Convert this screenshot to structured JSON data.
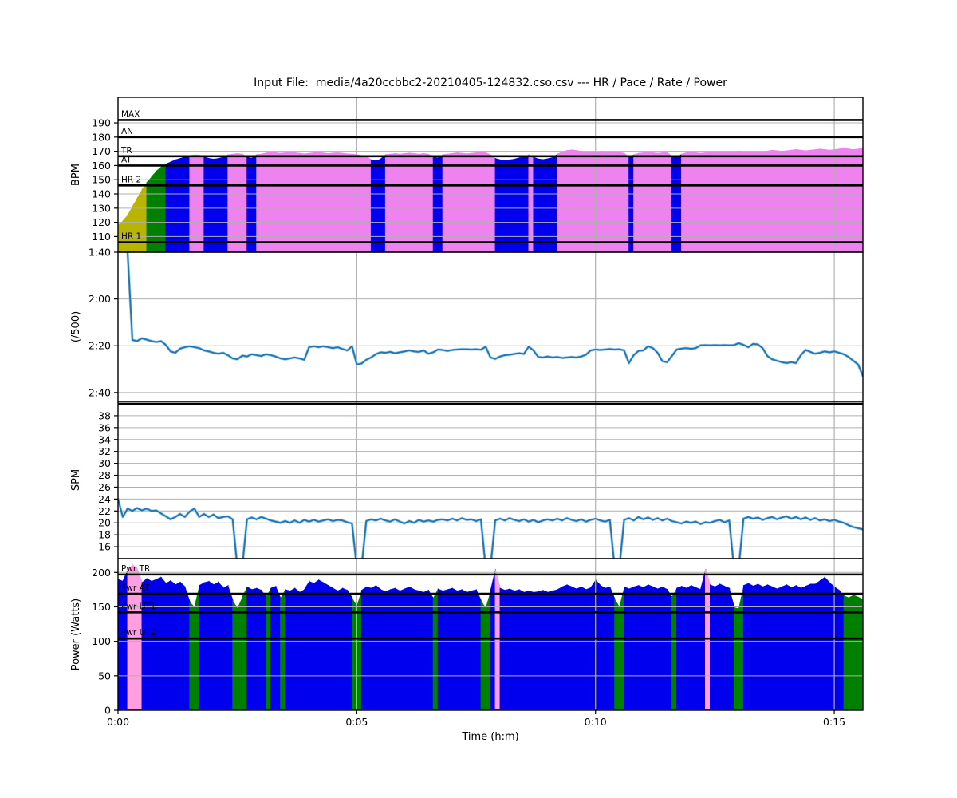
{
  "title": "Input File:  media/4a20ccbbc2-20210405-124832.cso.csv --- HR / Pace / Rate / Power",
  "chart_data": {
    "type": "area",
    "title": "Input File:  media/4a20ccbbc2-20210405-124832.cso.csv --- HR / Pace / Rate / Power",
    "xlabel": "Time (h:m)",
    "time_step_s": 6,
    "duration_s": 936,
    "grid_color": "#b0b0b0",
    "xticks": [
      {
        "s": 0,
        "label": "0:00"
      },
      {
        "s": 300,
        "label": "0:05"
      },
      {
        "s": 600,
        "label": "0:10"
      },
      {
        "s": 900,
        "label": "0:15"
      }
    ],
    "panels": [
      {
        "id": "hr",
        "type": "area",
        "ylabel": "BPM",
        "ylim": [
          99,
          208
        ],
        "yticks": [
          {
            "v": 190,
            "label": "190"
          },
          {
            "v": 180,
            "label": "180"
          },
          {
            "v": 170,
            "label": "170"
          },
          {
            "v": 160,
            "label": "160"
          },
          {
            "v": 150,
            "label": "150"
          },
          {
            "v": 140,
            "label": "140"
          },
          {
            "v": 130,
            "label": "130"
          },
          {
            "v": 120,
            "label": "120"
          },
          {
            "v": 110,
            "label": "110"
          }
        ],
        "thresholds": [
          {
            "label": "MAX",
            "v": 192
          },
          {
            "label": "AN",
            "v": 180
          },
          {
            "label": "TR",
            "v": 166.5
          },
          {
            "label": "AT",
            "v": 160
          },
          {
            "label": "HR 2",
            "v": 146
          },
          {
            "label": "HR 1",
            "v": 106
          }
        ],
        "zone_limits": [
          146,
          160,
          166.3
        ],
        "zone_colors": [
          "#b9b400",
          "#008000",
          "#0000ee",
          "#ee82ee"
        ],
        "values": [
          118,
          121,
          125,
          131,
          137,
          143,
          148,
          152,
          156,
          159,
          161,
          162.5,
          164,
          165,
          166,
          167,
          167.5,
          167.2,
          166,
          165,
          164.5,
          165,
          165.8,
          167.5,
          168,
          168.4,
          168,
          165.8,
          165.2,
          167.6,
          168,
          168.8,
          169.2,
          169,
          168.6,
          169,
          169.4,
          169,
          168.6,
          168.2,
          168.6,
          169,
          169.2,
          168.8,
          168.4,
          168.8,
          169,
          168.6,
          168.2,
          168,
          167.6,
          167,
          166.4,
          164,
          163.2,
          164.6,
          167.6,
          168,
          168.4,
          168,
          168.4,
          168.8,
          168.4,
          168,
          168.4,
          168,
          165.8,
          165.4,
          167.6,
          168,
          168.5,
          169,
          168.6,
          168.2,
          168.6,
          169,
          169.4,
          169,
          167.4,
          165,
          164,
          163.6,
          164,
          164.5,
          165.4,
          166,
          167.4,
          165.8,
          164.6,
          164.2,
          164.8,
          165.6,
          168,
          169.6,
          170.6,
          171,
          170.6,
          170,
          169.6,
          169.2,
          169.6,
          170,
          169.6,
          169.2,
          169.6,
          169.2,
          168.6,
          165.6,
          167.6,
          168.6,
          169,
          169.4,
          169,
          168.6,
          169,
          169.4,
          166,
          165.6,
          168,
          169,
          169.4,
          169,
          168.6,
          169,
          169.4,
          169.8,
          169.4,
          169,
          169.4,
          169.8,
          170.2,
          169.8,
          169.4,
          169,
          169.4,
          169.8,
          170.2,
          170.8,
          170.4,
          170,
          170.4,
          170.8,
          171.2,
          170.8,
          170.4,
          170.8,
          171.2,
          171.6,
          171.2,
          170.8,
          171.2,
          171.6,
          172,
          171.6,
          171.2,
          171.6,
          172
        ]
      },
      {
        "id": "pace",
        "type": "line",
        "ylabel": "(/500)",
        "ylim": [
          100,
          163.8
        ],
        "invert": true,
        "line_color": "#1f77b4",
        "halo_color": "#9dc7e6",
        "yticks": [
          {
            "v": 100,
            "label": "1:40"
          },
          {
            "v": 120,
            "label": "2:00"
          },
          {
            "v": 140,
            "label": "2:20"
          },
          {
            "v": 160,
            "label": "2:40"
          }
        ],
        "thresholds": [],
        "values": [
          null,
          null,
          100,
          137.5,
          138,
          136.8,
          137.4,
          138,
          138.4,
          138,
          139.6,
          142.4,
          143,
          141.2,
          140.6,
          140.2,
          140.6,
          141,
          142,
          142.4,
          143,
          143.4,
          143,
          144,
          145.4,
          145.8,
          144.2,
          144.6,
          143.6,
          144,
          144.4,
          143.6,
          144,
          144.6,
          145.4,
          145.8,
          145.4,
          145,
          145.4,
          146,
          140.6,
          140.2,
          140.6,
          140.2,
          140.6,
          141,
          140.6,
          141.4,
          142,
          140.2,
          148,
          147.6,
          146,
          145,
          143.6,
          142.8,
          143,
          142.6,
          143.2,
          142.8,
          142.4,
          142,
          142.4,
          142.6,
          142,
          143.4,
          142.8,
          141.6,
          141.8,
          142.2,
          141.8,
          141.6,
          141.5,
          141.5,
          141.6,
          141.5,
          141.7,
          140.4,
          145,
          145.6,
          144.6,
          144,
          143.8,
          143.5,
          143.2,
          143.5,
          140.4,
          142,
          144.8,
          145,
          144.6,
          145,
          144.8,
          145.2,
          145,
          144.8,
          145,
          144.6,
          143.8,
          142,
          141.6,
          141.8,
          141.6,
          141.4,
          141.6,
          141.5,
          142,
          147.4,
          144,
          142.2,
          142,
          140.2,
          141,
          143,
          146.6,
          147,
          144.4,
          141.6,
          141.2,
          141,
          141.3,
          141,
          139.8,
          139.7,
          139.8,
          139.7,
          139.8,
          139.7,
          139.8,
          139.7,
          138.9,
          139.6,
          140.6,
          139.2,
          139.4,
          141,
          144.4,
          145.8,
          146.4,
          147,
          147.4,
          147,
          147.4,
          144,
          141.8,
          142.6,
          143.4,
          143,
          142.4,
          142.8,
          142.4,
          143,
          143.6,
          144.8,
          146.4,
          148,
          153
        ]
      },
      {
        "id": "spm",
        "type": "line",
        "ylabel": "SPM",
        "ylim": [
          14,
          40.4
        ],
        "line_color": "#1f77b4",
        "halo_color": "#9dc7e6",
        "yticks": [
          {
            "v": 38,
            "label": "38"
          },
          {
            "v": 36,
            "label": "36"
          },
          {
            "v": 34,
            "label": "34"
          },
          {
            "v": 32,
            "label": "32"
          },
          {
            "v": 30,
            "label": "30"
          },
          {
            "v": 28,
            "label": "28"
          },
          {
            "v": 26,
            "label": "26"
          },
          {
            "v": 24,
            "label": "24"
          },
          {
            "v": 22,
            "label": "22"
          },
          {
            "v": 20,
            "label": "20"
          },
          {
            "v": 18,
            "label": "18"
          },
          {
            "v": 16,
            "label": "16"
          }
        ],
        "thresholds": [
          {
            "label": "",
            "v": 40
          }
        ],
        "values": [
          24,
          21,
          22.4,
          22,
          22.5,
          22.1,
          22.4,
          22,
          22.1,
          21.6,
          21.1,
          20.6,
          21,
          21.5,
          21,
          21.9,
          22.4,
          21,
          21.5,
          21,
          21.4,
          20.8,
          21,
          21.1,
          20.6,
          12.5,
          12.5,
          20.6,
          20.9,
          20.6,
          21,
          20.7,
          20.4,
          20.2,
          20,
          20.3,
          20,
          20.4,
          20,
          20.5,
          20.2,
          20.5,
          20.2,
          20.4,
          20.6,
          20.3,
          20.5,
          20.4,
          20.1,
          19.9,
          12.5,
          12.5,
          20.3,
          20.6,
          20.4,
          20.7,
          20.4,
          20.2,
          20.6,
          20.2,
          19.9,
          20.3,
          20,
          20.5,
          20.2,
          20.4,
          20.2,
          20.5,
          20.6,
          20.4,
          20.7,
          20.4,
          20.8,
          20.5,
          20.6,
          20.3,
          20.6,
          12.5,
          12.5,
          20.4,
          20.7,
          20.4,
          20.8,
          20.5,
          20.3,
          20.6,
          20.2,
          20.5,
          20.1,
          20.4,
          20.6,
          20.4,
          20.7,
          20.4,
          20.8,
          20.5,
          20.3,
          20.6,
          20.2,
          20.5,
          20.7,
          20.4,
          20.2,
          20.5,
          12.5,
          12.5,
          20.5,
          20.8,
          20.4,
          21,
          20.6,
          20.9,
          20.5,
          20.8,
          20.4,
          20.7,
          20.3,
          20.1,
          19.9,
          20.2,
          20,
          20.2,
          19.8,
          20.1,
          20,
          20.3,
          20.5,
          20.1,
          20.4,
          12.5,
          12.5,
          20.7,
          21,
          20.7,
          20.9,
          20.5,
          20.8,
          21,
          20.6,
          20.9,
          21.1,
          20.7,
          21,
          20.6,
          20.9,
          20.5,
          20.8,
          20.4,
          20.6,
          20.3,
          20.5,
          20.2,
          20,
          19.6,
          19.3,
          19.1,
          18.9
        ]
      },
      {
        "id": "power",
        "type": "area",
        "ylabel": "Power (Watts)",
        "ylim": [
          0,
          220
        ],
        "yticks": [
          {
            "v": 200,
            "label": "200"
          },
          {
            "v": 150,
            "label": "150"
          },
          {
            "v": 100,
            "label": "100"
          },
          {
            "v": 50,
            "label": "50"
          },
          {
            "v": 0,
            "label": "0"
          }
        ],
        "thresholds": [
          {
            "label": "Pwr TR",
            "v": 197
          },
          {
            "label": "Pwr AT",
            "v": 169
          },
          {
            "label": "Pwr UT1",
            "v": 142
          },
          {
            "label": "Pwr UT2",
            "v": 104
          }
        ],
        "zone_limits": [
          169.5,
          197.5
        ],
        "zone_colors": [
          "#008000",
          "#0000ee",
          "#ff9fe1"
        ],
        "baseline_color": "#c23a66",
        "values": [
          190,
          187,
          204,
          211,
          206,
          185,
          191,
          187,
          190,
          193,
          184,
          188,
          182,
          186,
          179,
          157,
          149,
          181,
          185,
          187,
          182,
          186,
          177,
          181,
          159,
          147,
          164,
          179,
          175,
          177,
          174,
          164,
          177,
          180,
          162,
          175,
          173,
          177,
          171,
          175,
          187,
          184,
          189,
          185,
          181,
          177,
          173,
          177,
          174,
          163,
          150,
          174,
          179,
          177,
          181,
          175,
          172,
          175,
          177,
          173,
          176,
          179,
          175,
          173,
          171,
          174,
          162,
          176,
          173,
          175,
          177,
          173,
          175,
          171,
          173,
          175,
          159,
          147,
          173,
          205,
          177,
          174,
          176,
          173,
          175,
          171,
          173,
          171,
          172,
          174,
          171,
          173,
          175,
          179,
          182,
          179,
          176,
          179,
          175,
          178,
          189,
          181,
          177,
          179,
          161,
          149,
          179,
          176,
          179,
          181,
          178,
          182,
          179,
          176,
          179,
          175,
          164,
          177,
          180,
          177,
          181,
          178,
          175,
          205,
          182,
          179,
          183,
          180,
          177,
          149,
          147,
          181,
          184,
          180,
          183,
          179,
          182,
          179,
          176,
          179,
          182,
          178,
          181,
          177,
          180,
          183,
          183,
          188,
          193,
          185,
          179,
          174,
          166,
          163,
          167,
          164,
          161
        ]
      }
    ]
  }
}
